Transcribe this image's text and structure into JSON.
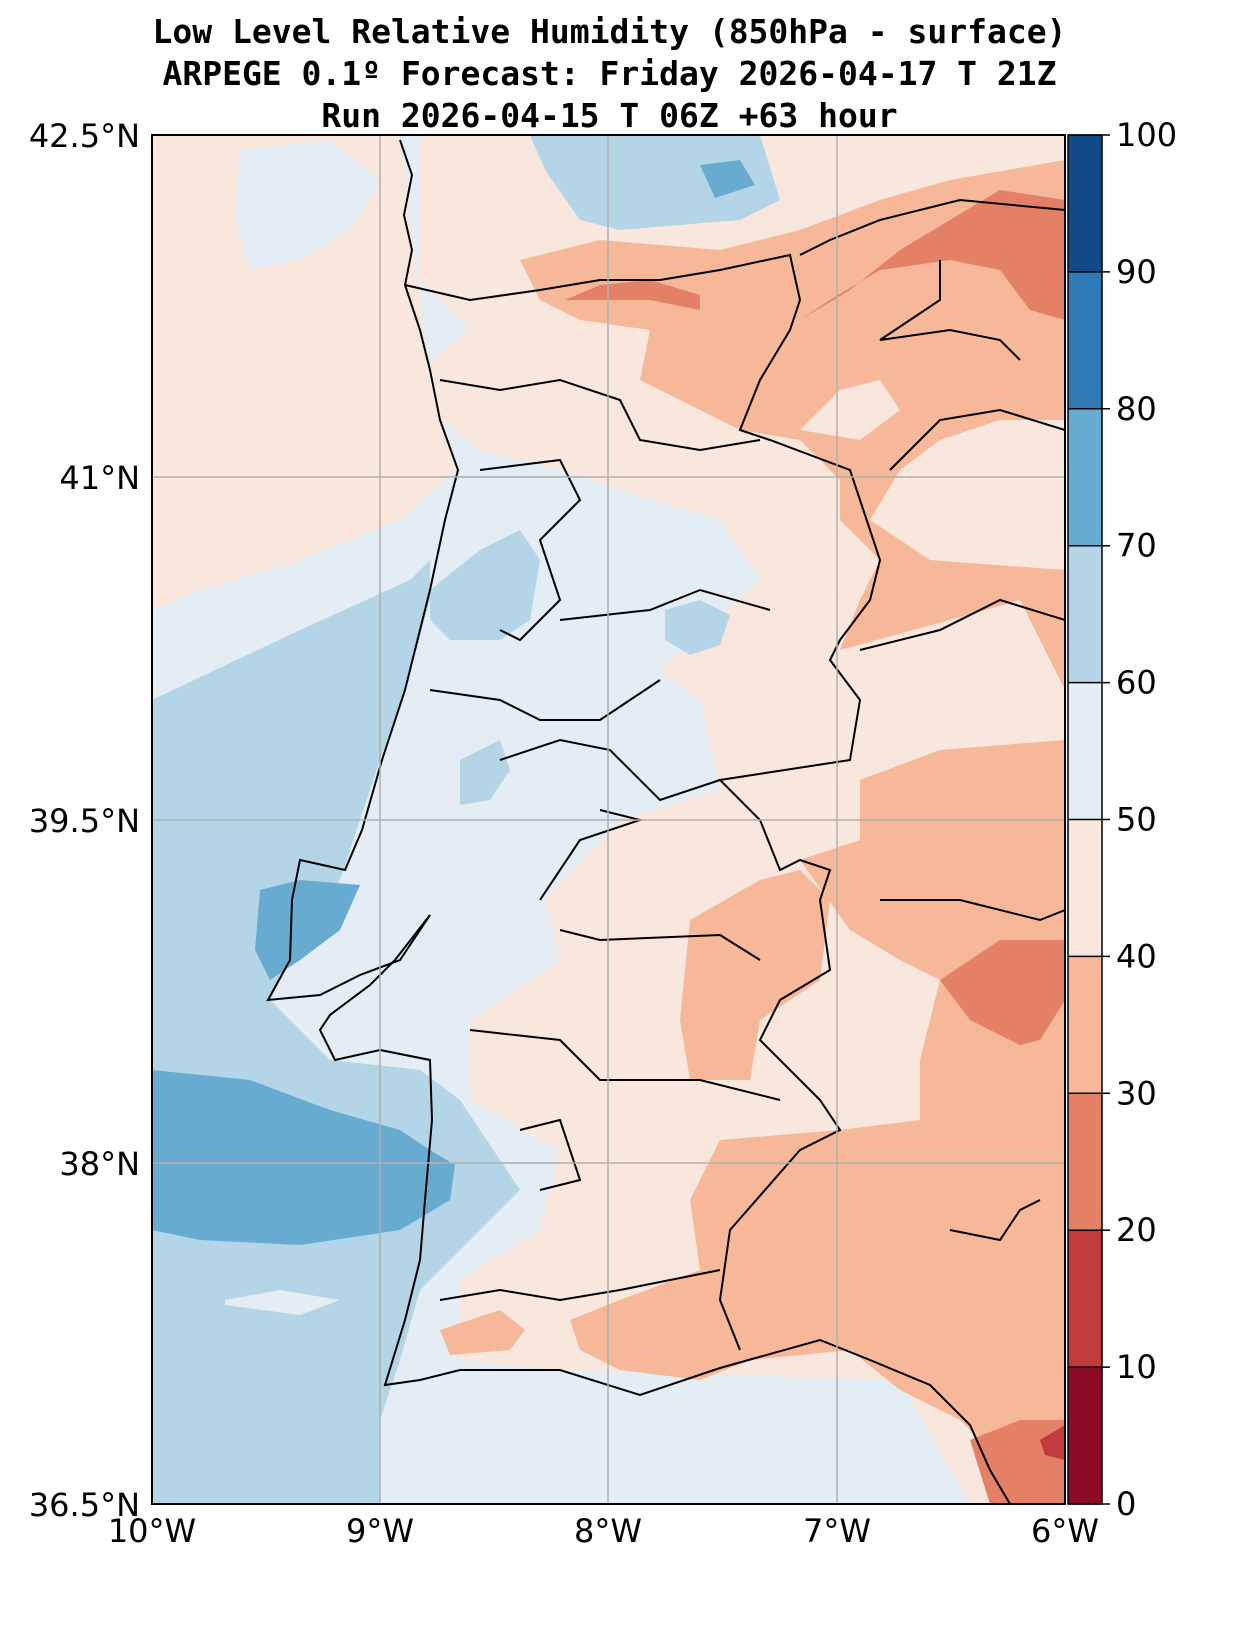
{
  "title": {
    "line1": "Low Level Relative Humidity (850hPa - surface)",
    "line2": "ARPEGE 0.1º Forecast: Friday 2026-04-17 T 21Z",
    "line3": "Run 2026-04-15 T 06Z +63 hour"
  },
  "axes": {
    "lat_labels": [
      "42.5°N",
      "41°N",
      "39.5°N",
      "38°N",
      "36.5°N"
    ],
    "lon_labels": [
      "10°W",
      "9°W",
      "8°W",
      "7°W",
      "6°W"
    ]
  },
  "colorbar": {
    "labels": [
      "0",
      "10",
      "20",
      "30",
      "40",
      "50",
      "60",
      "70",
      "80",
      "90",
      "100"
    ],
    "colors": [
      "#8b0a26",
      "#c13b3c",
      "#e48066",
      "#f7b799",
      "#f9e7de",
      "#e3edf3",
      "#b3d5e7",
      "#68abd0",
      "#2f79b5",
      "#134b87"
    ]
  },
  "chart_data": {
    "type": "heatmap",
    "variable": "Low Level Relative Humidity (850hPa - surface)",
    "units": "%",
    "lon_range": [
      -10,
      -6
    ],
    "lat_range": [
      36.5,
      42.5
    ],
    "levels": [
      0,
      10,
      20,
      30,
      40,
      50,
      60,
      70,
      80,
      90,
      100
    ],
    "grid": true,
    "colorbar_placement": "right",
    "regions": [
      {
        "area": "Atlantic NW of 41N",
        "range": [
          40,
          50
        ]
      },
      {
        "area": "Atlantic central band",
        "range": [
          50,
          60
        ]
      },
      {
        "area": "Atlantic off central/south Portugal",
        "range": [
          60,
          70
        ]
      },
      {
        "area": "Atlantic near 38N and off Cabo da Roca",
        "range": [
          70,
          80
        ]
      },
      {
        "area": "Coastal Portugal",
        "range": [
          50,
          70
        ]
      },
      {
        "area": "Interior Portugal and western Spain",
        "range": [
          30,
          50
        ]
      },
      {
        "area": "Northeast (Spain ~42N, 6W)",
        "range": [
          20,
          30
        ]
      },
      {
        "area": "Southeast corner near 36.7N 6.2W",
        "range": [
          10,
          30
        ]
      }
    ]
  }
}
